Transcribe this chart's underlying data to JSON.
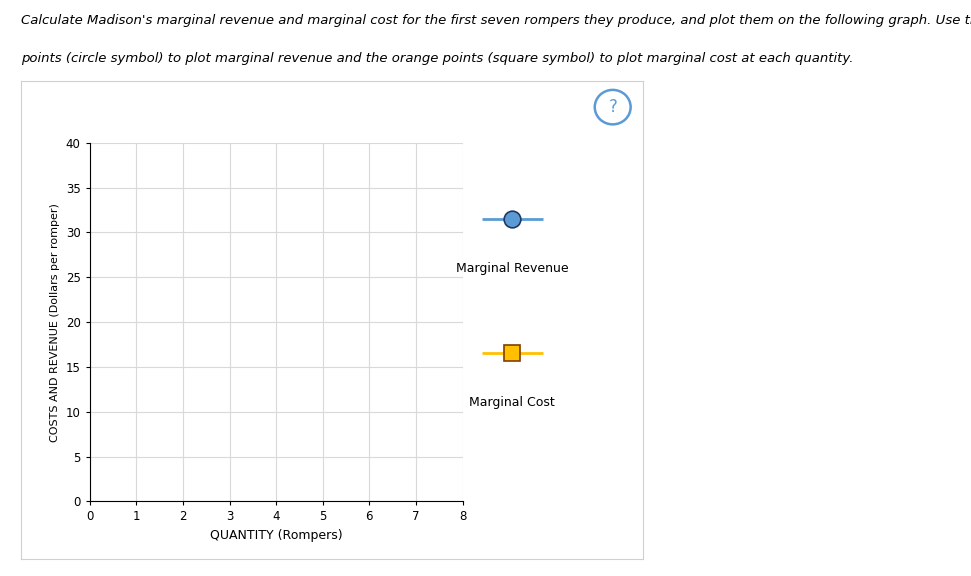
{
  "line1": "Calculate Madison's marginal revenue and marginal cost for the first seven rompers they produce, and plot them on the following graph. Use the blue",
  "line2": "points (circle symbol) to plot marginal revenue and the orange points (square symbol) to plot marginal cost at each quantity.",
  "ylabel": "COSTS AND REVENUE (Dollars per romper)",
  "xlabel": "QUANTITY (Rompers)",
  "xlim": [
    0,
    8
  ],
  "ylim": [
    0,
    40
  ],
  "xticks": [
    0,
    1,
    2,
    3,
    4,
    5,
    6,
    7,
    8
  ],
  "yticks": [
    0,
    5,
    10,
    15,
    20,
    25,
    30,
    35,
    40
  ],
  "mr_color": "#5b9bd5",
  "mr_edge_color": "#1f3864",
  "mc_color": "#ffc000",
  "mc_edge_color": "#7f3f00",
  "legend_line_mr": "#5b9bd5",
  "legend_line_mc": "#ffc000",
  "legend_mr_label": "Marginal Revenue",
  "legend_mc_label": "Marginal Cost",
  "grid_color": "#d9d9d9",
  "panel_border": "#d0d0d0",
  "fig_bg": "#ffffff",
  "text_fontsize": 9.5
}
